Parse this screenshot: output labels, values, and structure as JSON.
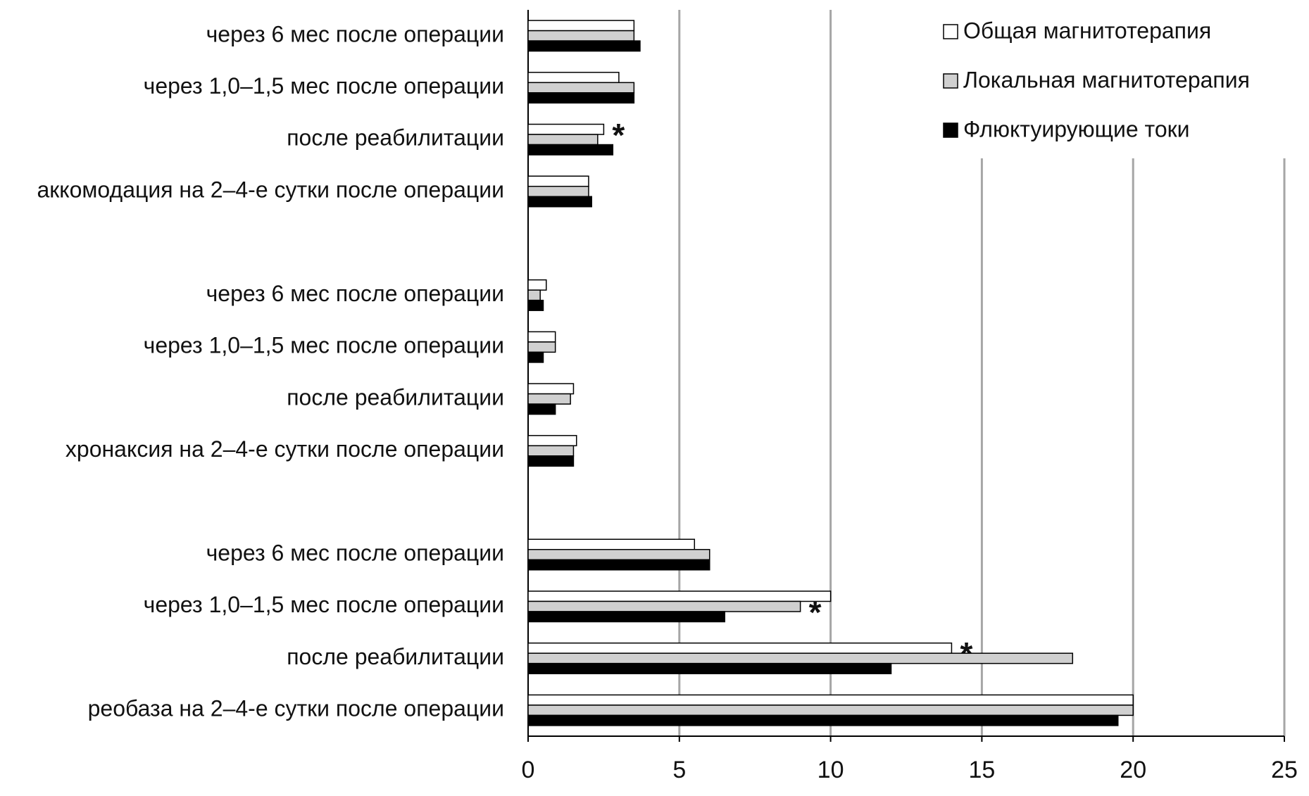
{
  "chart_data": {
    "type": "barh",
    "categories": [
      "через 6 мес после операции",
      "через 1,0–1,5 мес после операции",
      "после реабилитации",
      "аккомодация на 2–4-е сутки после операции",
      null,
      "через 6 мес после операции",
      "через 1,0–1,5 мес после операции",
      "после реабилитации",
      "хронаксия на 2–4-е сутки после операции",
      null,
      "через 6 мес после операции",
      "через 1,0–1,5 мес после операции",
      "после реабилитации",
      "реобаза на 2–4-е сутки после операции"
    ],
    "series": [
      {
        "name": "Общая магнитотерапия",
        "color": "#ffffff",
        "values": [
          3.5,
          3.0,
          2.5,
          2.0,
          null,
          0.6,
          0.9,
          1.5,
          1.6,
          null,
          5.5,
          10.0,
          14.0,
          20.0
        ],
        "notes": [
          null,
          null,
          "*",
          null,
          null,
          null,
          null,
          null,
          null,
          null,
          null,
          null,
          "*",
          null
        ]
      },
      {
        "name": "Локальная магнитотерапия",
        "color": "#d0d0d0",
        "values": [
          3.5,
          3.5,
          2.3,
          2.0,
          null,
          0.4,
          0.9,
          1.4,
          1.5,
          null,
          6.0,
          9.0,
          18.0,
          20.0
        ],
        "notes": [
          null,
          null,
          null,
          null,
          null,
          null,
          null,
          null,
          null,
          null,
          null,
          "*",
          null,
          null
        ]
      },
      {
        "name": "Флюктуирующие токи",
        "color": "#000000",
        "values": [
          3.7,
          3.5,
          2.8,
          2.1,
          null,
          0.5,
          0.5,
          0.9,
          1.5,
          null,
          6.0,
          6.5,
          12.0,
          19.5
        ]
      }
    ],
    "xlim": [
      0,
      25
    ],
    "xticks": [
      0,
      5,
      10,
      15,
      20,
      25
    ],
    "grid": true,
    "legend": "top-right"
  }
}
